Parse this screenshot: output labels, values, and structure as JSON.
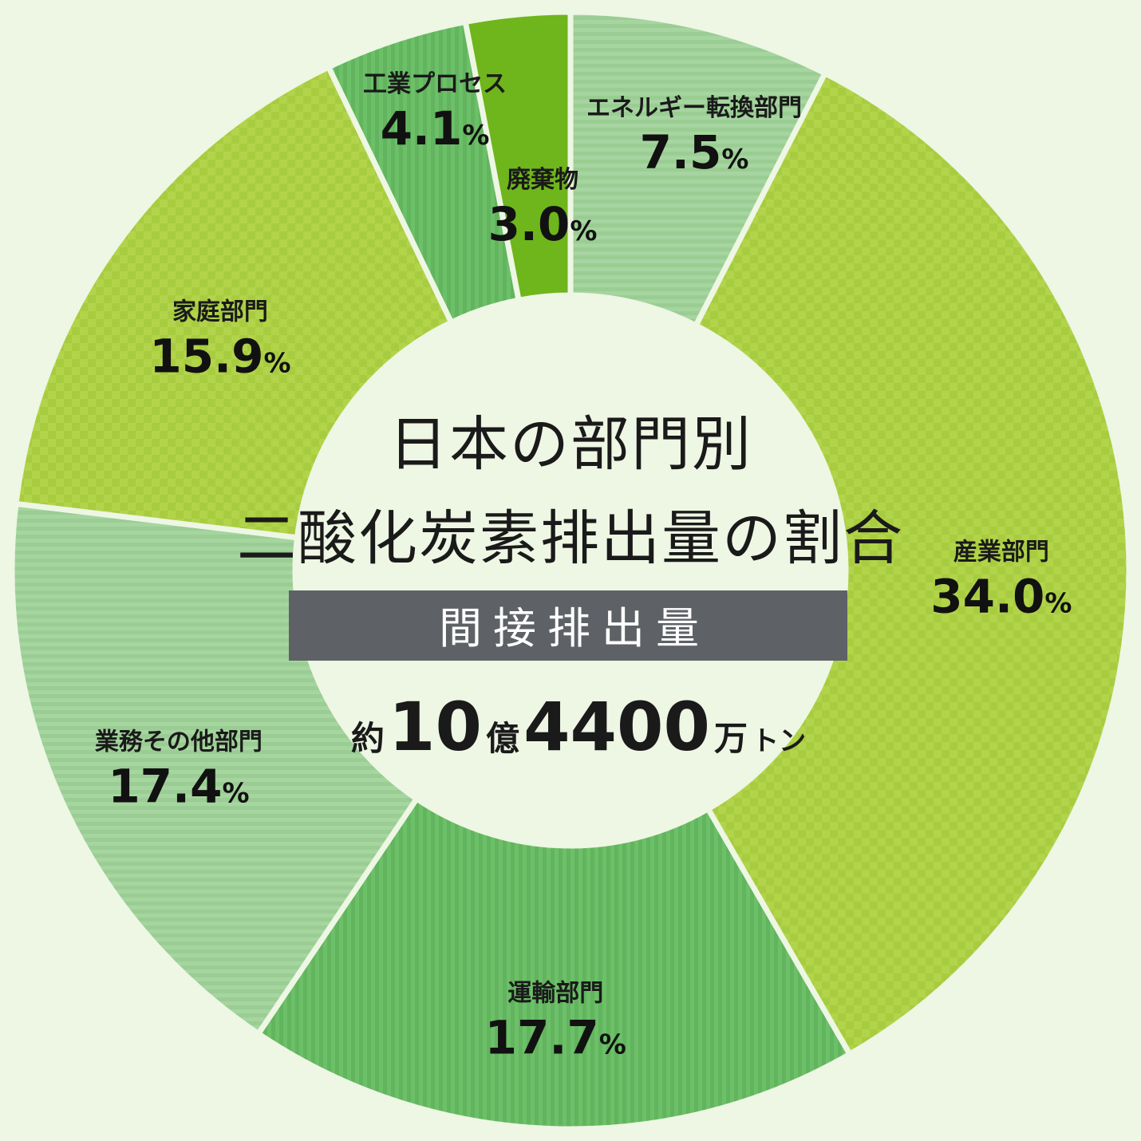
{
  "center": {
    "title_line1": "日本の部門別",
    "title_line2": "二酸化炭素排出量の割合",
    "subtitle": "間接排出量",
    "total": {
      "prefix": "約",
      "part1": "10",
      "unit1": "億",
      "part2": "4400",
      "unit2": "万",
      "unit3": "トン"
    }
  },
  "chart_data": {
    "type": "pie",
    "donut": true,
    "unit": "%",
    "start_angle_deg": 0,
    "direction": "clockwise",
    "slices": [
      {
        "label": "エネルギー転換部門",
        "value": 7.5,
        "value_text": "7.5",
        "color": "#a6d5a0",
        "pattern": "horizontal-stripes"
      },
      {
        "label": "産業部門",
        "value": 34.0,
        "value_text": "34.0",
        "color": "#b2d44a",
        "pattern": "checker"
      },
      {
        "label": "運輸部門",
        "value": 17.7,
        "value_text": "17.7",
        "color": "#6cc068",
        "pattern": "vertical-stripes"
      },
      {
        "label": "業務その他部門",
        "value": 17.4,
        "value_text": "17.4",
        "color": "#a6d5a0",
        "pattern": "horizontal-stripes"
      },
      {
        "label": "家庭部門",
        "value": 15.9,
        "value_text": "15.9",
        "color": "#b2d44a",
        "pattern": "checker"
      },
      {
        "label": "工業プロセス",
        "value": 4.1,
        "value_text": "4.1",
        "color": "#6cc068",
        "pattern": "vertical-stripes"
      },
      {
        "label": "廃棄物",
        "value": 3.0,
        "value_text": "3.0",
        "color": "#6fb51c",
        "pattern": "solid"
      }
    ]
  }
}
